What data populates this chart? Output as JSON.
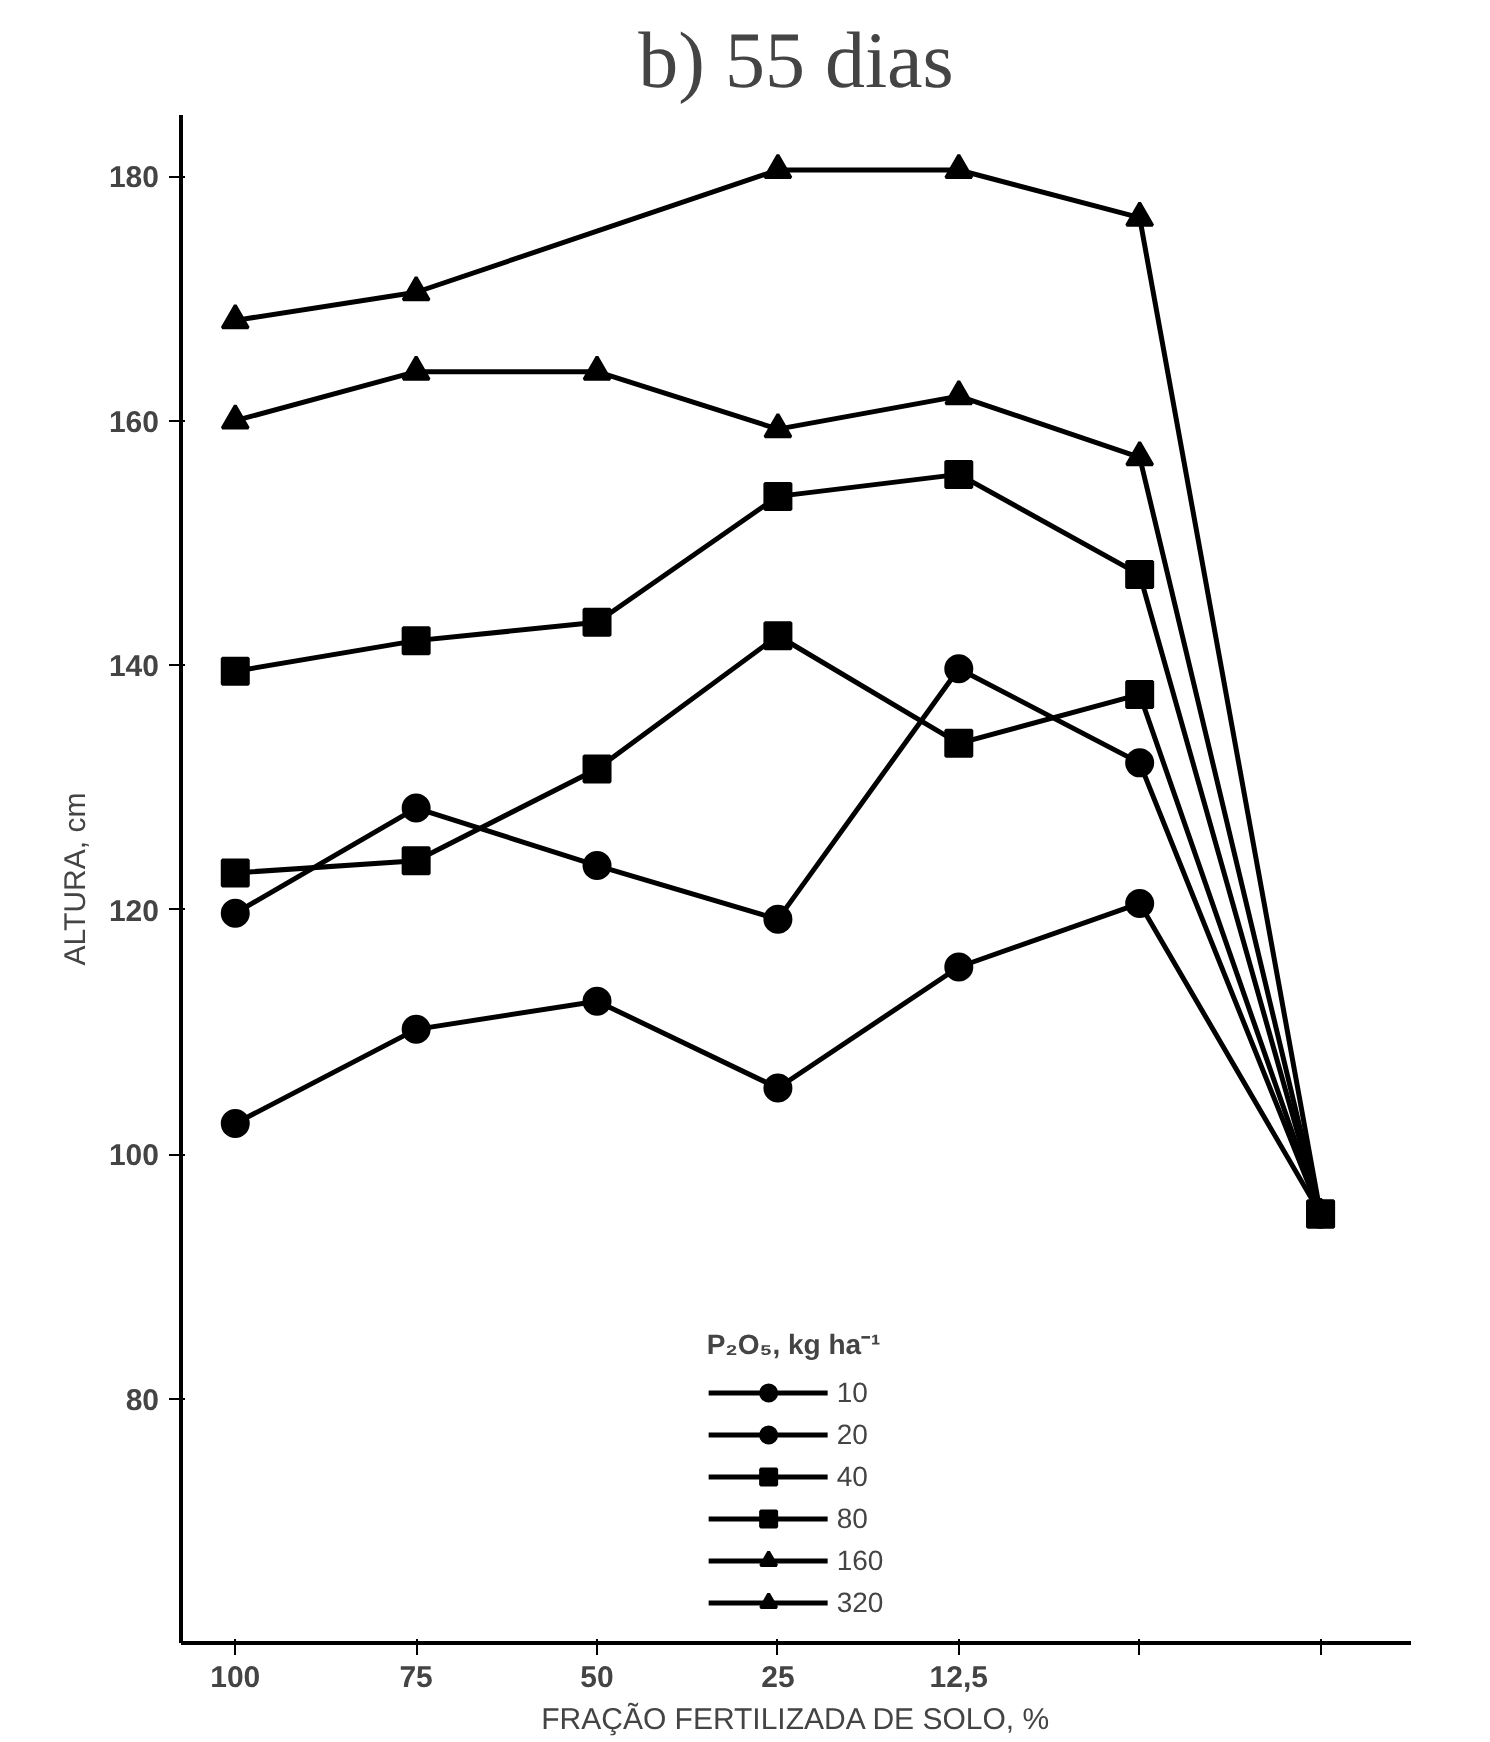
{
  "chart_data": {
    "type": "line",
    "title": "b) 55 dias",
    "xlabel": "FRAÇÃO FERTILIZADA DE SOLO, %",
    "ylabel": "ALTURA, cm",
    "legend_title": "P₂O₅, kg ha⁻¹",
    "categories": [
      "100",
      "75",
      "50",
      "25",
      "12,5",
      null,
      null
    ],
    "series": [
      {
        "name": "10",
        "color": "#000000",
        "marker": "circle",
        "values": [
          102.5,
          110.2,
          112.5,
          105.4,
          115.3,
          120.5,
          95.1
        ]
      },
      {
        "name": "20",
        "color": "#000000",
        "marker": "circle",
        "values": [
          119.7,
          128.3,
          123.6,
          119.2,
          139.7,
          132,
          95.1
        ]
      },
      {
        "name": "40",
        "color": "#000000",
        "marker": "square",
        "values": [
          123,
          124,
          131.5,
          142.4,
          133.6,
          137.6,
          95.1
        ]
      },
      {
        "name": "80",
        "color": "#000000",
        "marker": "square",
        "values": [
          139.5,
          142,
          143.5,
          153.8,
          155.6,
          147.4,
          95.1
        ]
      },
      {
        "name": "160",
        "color": "#000000",
        "marker": "triangle",
        "values": [
          160,
          164,
          164,
          159.3,
          162,
          157,
          95.1
        ]
      },
      {
        "name": "320",
        "color": "#000000",
        "marker": "triangle",
        "values": [
          168.2,
          170.5,
          null,
          180.5,
          180.5,
          176.6,
          95.1
        ]
      }
    ],
    "ylim": [
      60,
      185
    ],
    "yticks": [
      80,
      100,
      120,
      140,
      160,
      180
    ],
    "grid": false,
    "legend": "bottom",
    "line_style": "solid"
  }
}
